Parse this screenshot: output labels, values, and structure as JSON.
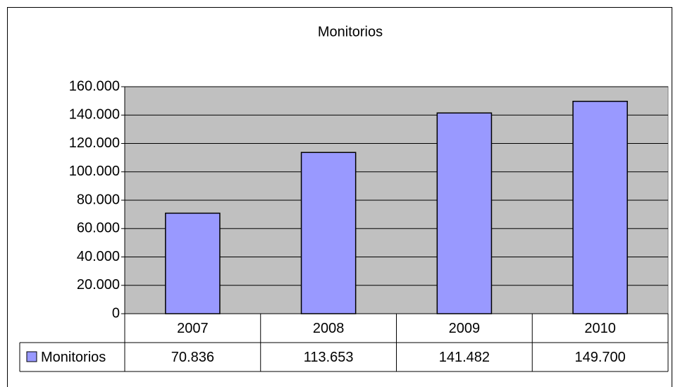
{
  "chart_data": {
    "type": "bar",
    "title": "Monitorios",
    "categories": [
      "2007",
      "2008",
      "2009",
      "2010"
    ],
    "series": [
      {
        "name": "Monitorios",
        "color": "#9999ff",
        "values": [
          70836,
          113653,
          141482,
          149700
        ],
        "value_labels": [
          "70.836",
          "113.653",
          "141.482",
          "149.700"
        ]
      }
    ],
    "ylim": [
      0,
      160000
    ],
    "yticks": [
      0,
      {
        "value": 20000,
        "label": "20.000"
      },
      {
        "value": 40000,
        "label": "40.000"
      },
      {
        "value": 60000,
        "label": "60.000"
      },
      {
        "value": 80000,
        "label": "80.000"
      },
      {
        "value": 100000,
        "label": "100.000"
      },
      {
        "value": 120000,
        "label": "120.000"
      },
      {
        "value": 140000,
        "label": "140.000"
      },
      {
        "value": 160000,
        "label": "160.000"
      }
    ],
    "grid": true,
    "data_table": true,
    "plot_background": "#c0c0c0"
  }
}
